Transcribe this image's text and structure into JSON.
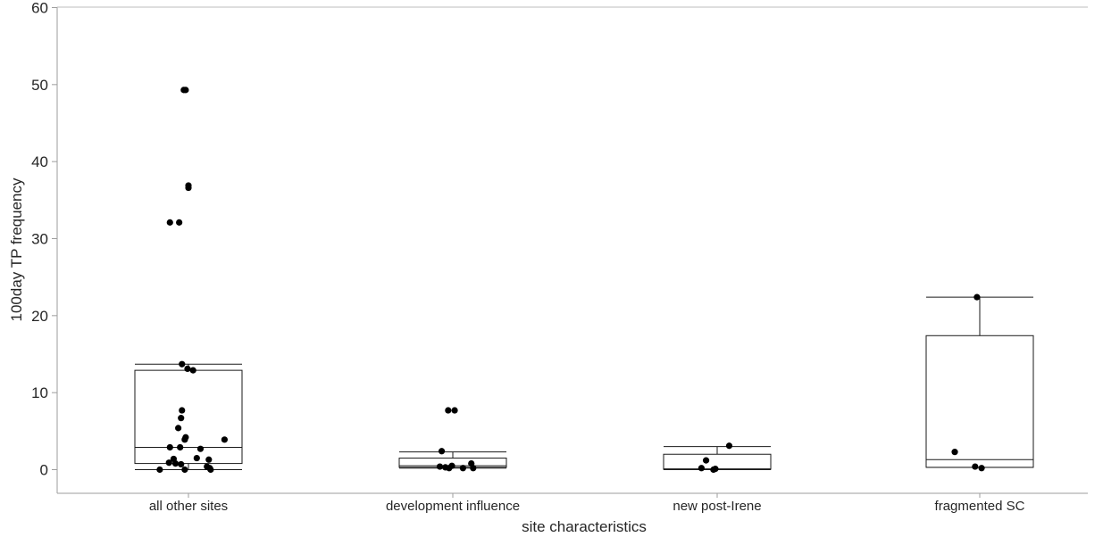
{
  "chart_data": {
    "type": "box",
    "title": "",
    "xlabel": "site characteristics",
    "ylabel": "100day TP frequency",
    "ylim": [
      0,
      60
    ],
    "yticks": [
      0,
      10,
      20,
      30,
      40,
      50,
      60
    ],
    "categories": [
      "all other sites",
      "development influence",
      "new post-Irene",
      "fragmented SC"
    ],
    "boxes": [
      {
        "category": "all other sites",
        "whisker_low": 0,
        "q1": 0.8,
        "median": 2.9,
        "q3": 12.9,
        "whisker_high": 13.7
      },
      {
        "category": "development influence",
        "whisker_low": 0.2,
        "q1": 0.3,
        "median": 0.5,
        "q3": 1.5,
        "whisker_high": 2.3
      },
      {
        "category": "new post-Irene",
        "whisker_low": 0,
        "q1": 0.05,
        "median": 0.1,
        "q3": 2.0,
        "whisker_high": 3.0
      },
      {
        "category": "fragmented SC",
        "whisker_low": 0.3,
        "q1": 0.3,
        "median": 1.3,
        "q3": 17.4,
        "whisker_high": 22.4
      }
    ],
    "points": [
      {
        "category": "all other sites",
        "y": 49.3,
        "jitter": -0.05
      },
      {
        "category": "all other sites",
        "y": 49.3,
        "jitter": -0.03
      },
      {
        "category": "all other sites",
        "y": 36.9,
        "jitter": 0.0
      },
      {
        "category": "all other sites",
        "y": 36.6,
        "jitter": 0.0
      },
      {
        "category": "all other sites",
        "y": 32.1,
        "jitter": -0.2
      },
      {
        "category": "all other sites",
        "y": 32.1,
        "jitter": -0.1
      },
      {
        "category": "all other sites",
        "y": 13.7,
        "jitter": -0.07
      },
      {
        "category": "all other sites",
        "y": 13.1,
        "jitter": -0.01
      },
      {
        "category": "all other sites",
        "y": 12.9,
        "jitter": 0.05
      },
      {
        "category": "all other sites",
        "y": 7.7,
        "jitter": -0.07
      },
      {
        "category": "all other sites",
        "y": 6.7,
        "jitter": -0.08
      },
      {
        "category": "all other sites",
        "y": 5.4,
        "jitter": -0.11
      },
      {
        "category": "all other sites",
        "y": 4.2,
        "jitter": -0.03
      },
      {
        "category": "all other sites",
        "y": 3.9,
        "jitter": -0.04
      },
      {
        "category": "all other sites",
        "y": 3.9,
        "jitter": 0.39
      },
      {
        "category": "all other sites",
        "y": 2.9,
        "jitter": -0.2
      },
      {
        "category": "all other sites",
        "y": 2.9,
        "jitter": -0.09
      },
      {
        "category": "all other sites",
        "y": 2.7,
        "jitter": 0.13
      },
      {
        "category": "all other sites",
        "y": 1.5,
        "jitter": 0.09
      },
      {
        "category": "all other sites",
        "y": 1.4,
        "jitter": -0.16
      },
      {
        "category": "all other sites",
        "y": 1.3,
        "jitter": 0.22
      },
      {
        "category": "all other sites",
        "y": 0.9,
        "jitter": -0.21
      },
      {
        "category": "all other sites",
        "y": 0.8,
        "jitter": -0.14
      },
      {
        "category": "all other sites",
        "y": 0.7,
        "jitter": -0.08
      },
      {
        "category": "all other sites",
        "y": 0.4,
        "jitter": 0.2
      },
      {
        "category": "all other sites",
        "y": 0.2,
        "jitter": 0.23
      },
      {
        "category": "all other sites",
        "y": 0.0,
        "jitter": -0.31
      },
      {
        "category": "all other sites",
        "y": 0.0,
        "jitter": -0.04
      },
      {
        "category": "all other sites",
        "y": 0.0,
        "jitter": 0.24
      },
      {
        "category": "development influence",
        "y": 7.7,
        "jitter": -0.05
      },
      {
        "category": "development influence",
        "y": 7.7,
        "jitter": 0.02
      },
      {
        "category": "development influence",
        "y": 2.4,
        "jitter": -0.12
      },
      {
        "category": "development influence",
        "y": 0.8,
        "jitter": 0.2
      },
      {
        "category": "development influence",
        "y": 0.5,
        "jitter": -0.01
      },
      {
        "category": "development influence",
        "y": 0.4,
        "jitter": -0.14
      },
      {
        "category": "development influence",
        "y": 0.3,
        "jitter": -0.08
      },
      {
        "category": "development influence",
        "y": 0.2,
        "jitter": 0.11
      },
      {
        "category": "development influence",
        "y": 0.2,
        "jitter": 0.22
      },
      {
        "category": "development influence",
        "y": 0.2,
        "jitter": -0.04
      },
      {
        "category": "new post-Irene",
        "y": 3.1,
        "jitter": 0.13
      },
      {
        "category": "new post-Irene",
        "y": 1.2,
        "jitter": -0.12
      },
      {
        "category": "new post-Irene",
        "y": 0.2,
        "jitter": -0.17
      },
      {
        "category": "new post-Irene",
        "y": 0.1,
        "jitter": -0.02
      },
      {
        "category": "new post-Irene",
        "y": 0.0,
        "jitter": -0.04
      },
      {
        "category": "fragmented SC",
        "y": 22.4,
        "jitter": -0.03
      },
      {
        "category": "fragmented SC",
        "y": 2.3,
        "jitter": -0.27
      },
      {
        "category": "fragmented SC",
        "y": 0.4,
        "jitter": -0.05
      },
      {
        "category": "fragmented SC",
        "y": 0.2,
        "jitter": 0.02
      }
    ],
    "grid": false,
    "legend": "none"
  }
}
